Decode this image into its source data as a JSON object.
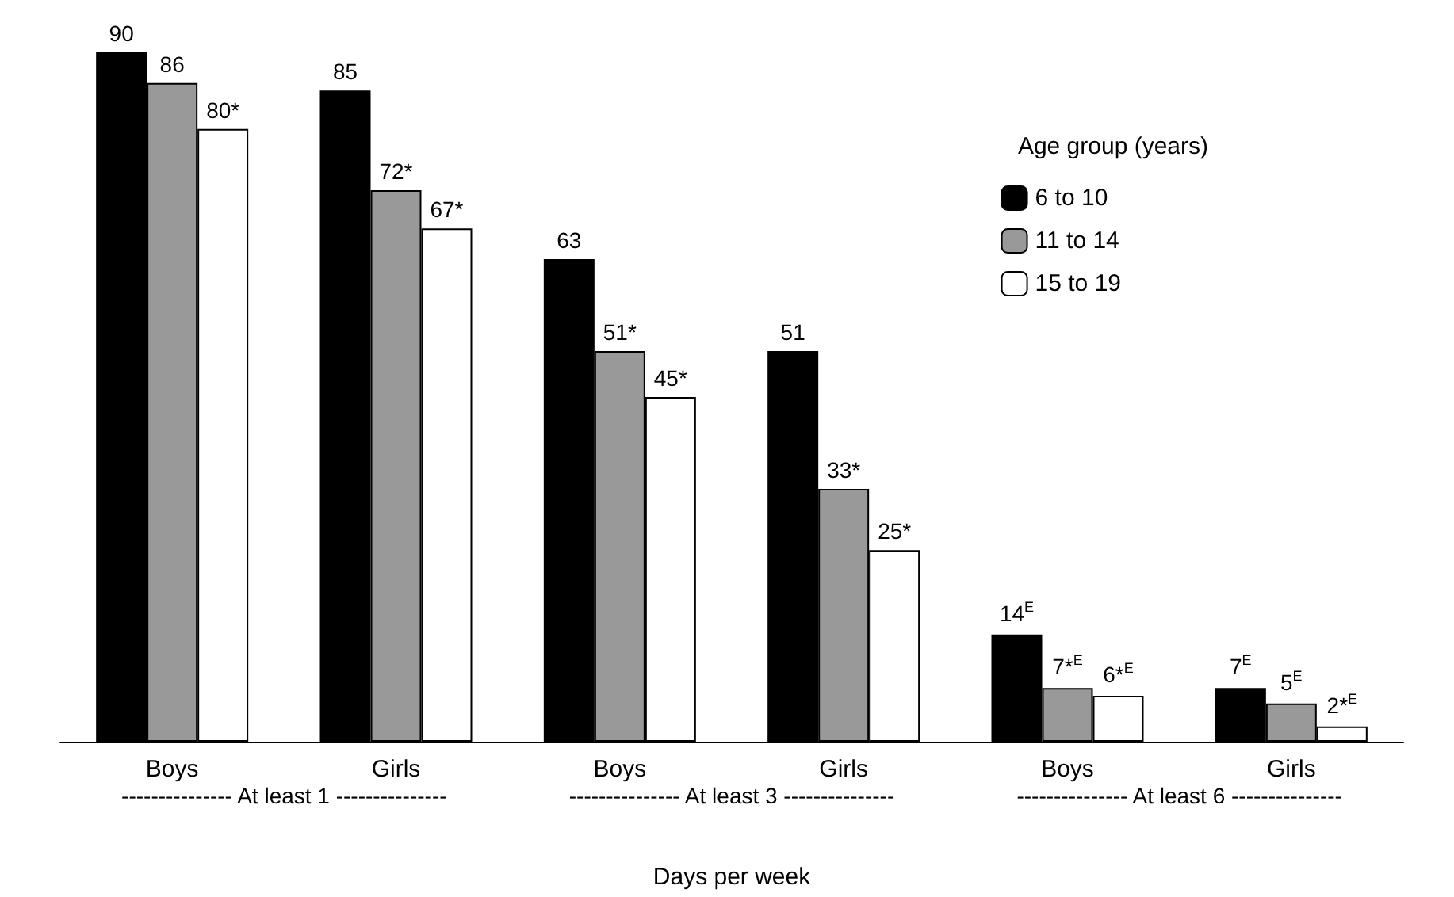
{
  "chart_data": {
    "type": "bar",
    "xlabel": "Days per week",
    "legend_title": "Age group (years)",
    "legend": "top right",
    "categories": [
      "Boys",
      "Girls",
      "Boys",
      "Girls",
      "Boys",
      "Girls"
    ],
    "annotations": [
      "--------------- At least 1 ---------------",
      "--------------- At least 3 ---------------",
      "--------------- At least 6 ---------------"
    ],
    "series": [
      {
        "name": "6 to 10",
        "color": "#000000",
        "values": [
          90,
          85,
          63,
          51,
          14,
          7
        ],
        "value_labels": [
          "90",
          "85",
          "63",
          "51",
          "14$^{E}$",
          "7$^{E}$"
        ]
      },
      {
        "name": "11 to 14",
        "color": "#999999",
        "values": [
          86,
          72,
          51,
          33,
          7,
          5
        ],
        "value_labels": [
          "86",
          "72*",
          "51*",
          "33*",
          "7*$^{E}$",
          "5$^{E}$"
        ]
      },
      {
        "name": "15 to 19",
        "color": "#ffffff",
        "values": [
          80,
          67,
          45,
          25,
          6,
          2
        ],
        "value_labels": [
          "80*",
          "67*",
          "45*",
          "25*",
          "6*$^{E}$",
          "2*$^{E}$"
        ]
      }
    ]
  }
}
